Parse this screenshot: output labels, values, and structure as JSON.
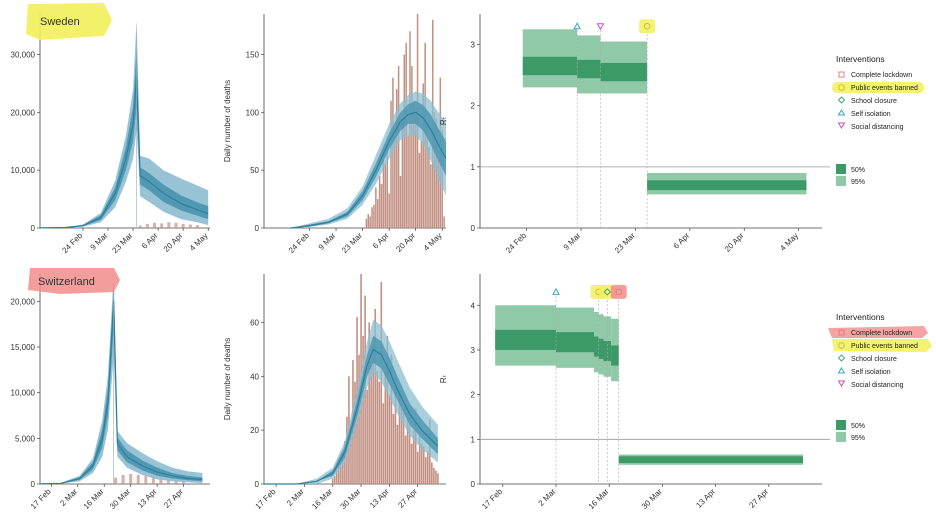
{
  "colors": {
    "blue_dark": "#2e7f9c",
    "blue_band_inner": "#4d97b1",
    "blue_band_outer": "#8cbdd0",
    "bar": "#c29184",
    "green_dark": "#3c9a68",
    "green_light": "#8fc9a8",
    "highlight_yellow": "#f2ef5a",
    "highlight_red": "#f28c8c",
    "marker_lockdown": "#e08080",
    "marker_events": "#c9c33a",
    "marker_school": "#4aaa77",
    "marker_isolation": "#3aa7c0",
    "marker_distancing": "#c055c0"
  },
  "panels": {
    "sweden": {
      "label": "Sweden"
    },
    "switzerland": {
      "label": "Switzerland"
    }
  },
  "legend": {
    "title": "Interventions",
    "items": [
      {
        "label": "Complete lockdown",
        "icon": "square-icon"
      },
      {
        "label": "Public events banned",
        "icon": "circle-icon"
      },
      {
        "label": "School closure",
        "icon": "diamond-icon"
      },
      {
        "label": "Self isolation",
        "icon": "triangle-up-icon"
      },
      {
        "label": "Social distancing",
        "icon": "triangle-down-icon"
      }
    ],
    "ci": [
      {
        "label": "50%"
      },
      {
        "label": "95%"
      }
    ]
  },
  "chart_data": [
    {
      "id": "sweden-infections",
      "type": "area",
      "title": "",
      "xlabel": "",
      "ylabel": "",
      "ylim": [
        0,
        37000
      ],
      "yticks": [
        0,
        10000,
        20000,
        30000
      ],
      "ytick_labels": [
        "0",
        "10,000",
        "20,000",
        "30,000"
      ],
      "xticks": [
        "24 Feb",
        "9 Mar",
        "23 Mar",
        "6 Apr",
        "20 Apr",
        "4 May"
      ],
      "x_days": [
        -24,
        71
      ],
      "xtick_days": [
        0,
        14,
        28,
        42,
        56,
        70
      ],
      "peak_day": 30,
      "series": {
        "x": [
          -24,
          -10,
          0,
          10,
          18,
          24,
          28,
          30,
          32,
          37,
          45,
          55,
          65,
          70
        ],
        "median": [
          20,
          80,
          400,
          1800,
          6000,
          12000,
          18000,
          26000,
          9000,
          8000,
          6000,
          4200,
          3000,
          2500
        ],
        "ci50_low": [
          15,
          60,
          300,
          1400,
          4800,
          10000,
          15000,
          21000,
          7500,
          6500,
          4500,
          3000,
          2000,
          1500
        ],
        "ci50_high": [
          25,
          100,
          500,
          2200,
          7000,
          14000,
          21000,
          31000,
          10500,
          9500,
          7500,
          5600,
          4300,
          3800
        ],
        "ci95_low": [
          10,
          40,
          200,
          1000,
          3600,
          8000,
          12000,
          17000,
          5500,
          4500,
          2800,
          1500,
          900,
          500
        ],
        "ci95_high": [
          30,
          120,
          600,
          2600,
          8200,
          16000,
          24000,
          36000,
          12500,
          12000,
          10000,
          8500,
          7200,
          6500
        ]
      },
      "bars": {
        "x": [
          32,
          36,
          40,
          44,
          48,
          52,
          56,
          60,
          64
        ],
        "values": [
          400,
          700,
          900,
          800,
          1000,
          900,
          700,
          600,
          500
        ]
      }
    },
    {
      "id": "sweden-deaths",
      "type": "bar",
      "title": "",
      "xlabel": "",
      "ylabel": "Daily number of deaths",
      "ylim": [
        0,
        185
      ],
      "yticks": [
        0,
        50,
        100,
        150
      ],
      "ytick_labels": [
        "0",
        "50",
        "100",
        "150"
      ],
      "xticks": [
        "24 Feb",
        "9 Mar",
        "23 Mar",
        "6 Apr",
        "20 Apr",
        "4 May"
      ],
      "x_days": [
        -24,
        72
      ],
      "xtick_days": [
        0,
        14,
        28,
        42,
        56,
        70
      ],
      "bars": {
        "x": [
          30,
          31,
          32,
          33,
          34,
          35,
          36,
          37,
          38,
          39,
          40,
          41,
          42,
          43,
          44,
          45,
          46,
          47,
          48,
          49,
          50,
          51,
          52,
          53,
          54,
          55,
          56,
          57,
          58,
          59,
          60,
          61,
          62,
          63,
          64,
          65,
          66,
          67,
          68,
          69,
          70,
          71
        ],
        "values": [
          8,
          12,
          10,
          18,
          20,
          35,
          25,
          45,
          38,
          60,
          55,
          70,
          30,
          110,
          130,
          85,
          120,
          140,
          45,
          95,
          150,
          160,
          80,
          170,
          140,
          110,
          100,
          185,
          65,
          75,
          125,
          160,
          90,
          70,
          55,
          180,
          100,
          95,
          60,
          130,
          85,
          10
        ]
      },
      "series": {
        "x": [
          -10,
          0,
          10,
          20,
          28,
          35,
          42,
          48,
          52,
          56,
          60,
          64,
          68,
          72
        ],
        "median": [
          0,
          2,
          5,
          12,
          28,
          50,
          75,
          92,
          98,
          100,
          95,
          85,
          72,
          60
        ],
        "ci50_low": [
          0,
          1,
          4,
          10,
          24,
          44,
          68,
          84,
          90,
          90,
          84,
          72,
          58,
          45
        ],
        "ci50_high": [
          0,
          3,
          6,
          14,
          32,
          56,
          82,
          100,
          107,
          110,
          106,
          98,
          86,
          75
        ],
        "ci95_low": [
          0,
          1,
          3,
          8,
          20,
          38,
          60,
          76,
          80,
          80,
          72,
          58,
          42,
          28
        ],
        "ci95_high": [
          0,
          4,
          8,
          17,
          36,
          63,
          90,
          108,
          115,
          118,
          116,
          110,
          100,
          92
        ]
      }
    },
    {
      "id": "sweden-rt",
      "type": "area",
      "title": "",
      "xlabel": "",
      "ylabel": "Rₜ",
      "ylim": [
        0,
        3.5
      ],
      "yticks": [
        0,
        1,
        2,
        3
      ],
      "ytick_labels": [
        "0",
        "1",
        "2",
        "3"
      ],
      "xticks": [
        "24 Feb",
        "9 Mar",
        "23 Mar",
        "6 Apr",
        "20 Apr",
        "4 May"
      ],
      "x_days": [
        -12,
        76
      ],
      "xtick_days": [
        0,
        14,
        28,
        42,
        56,
        70
      ],
      "reference_line": 1,
      "segments": [
        {
          "x0": -1,
          "x1": 13,
          "ci50": [
            2.5,
            2.8
          ],
          "ci95": [
            2.3,
            3.25
          ]
        },
        {
          "x0": 13,
          "x1": 19,
          "ci50": [
            2.45,
            2.75
          ],
          "ci95": [
            2.2,
            3.15
          ]
        },
        {
          "x0": 19,
          "x1": 31,
          "ci50": [
            2.4,
            2.7
          ],
          "ci95": [
            2.2,
            3.05
          ]
        },
        {
          "x0": 31,
          "x1": 72,
          "ci50": [
            0.62,
            0.78
          ],
          "ci95": [
            0.55,
            0.9
          ]
        }
      ],
      "interventions": [
        {
          "day": 13,
          "marker": "triangle-up",
          "y": 3.3
        },
        {
          "day": 19,
          "marker": "triangle-down",
          "y": 3.3
        },
        {
          "day": 31,
          "marker": "circle",
          "y": 3.3,
          "highlight": "yellow"
        }
      ]
    },
    {
      "id": "switzerland-infections",
      "type": "area",
      "title": "",
      "xlabel": "",
      "ylabel": "",
      "ylim": [
        0,
        23000
      ],
      "yticks": [
        0,
        5000,
        10000,
        15000,
        20000
      ],
      "ytick_labels": [
        "0",
        "5,000",
        "10,000",
        "15,000",
        "20,000"
      ],
      "xticks": [
        "17 Feb",
        "2 Mar",
        "16 Mar",
        "30 Mar",
        "13 Apr",
        "27 Apr"
      ],
      "x_days": [
        -6,
        84
      ],
      "xtick_days": [
        0,
        14,
        28,
        42,
        56,
        70
      ],
      "peak_day": 33,
      "series": {
        "x": [
          -6,
          5,
          15,
          22,
          27,
          30,
          33,
          35,
          40,
          48,
          56,
          64,
          72,
          80
        ],
        "median": [
          10,
          80,
          600,
          2000,
          5000,
          9000,
          20000,
          4400,
          3000,
          2000,
          1300,
          900,
          600,
          500
        ],
        "ci50_low": [
          8,
          60,
          450,
          1600,
          4000,
          7500,
          17000,
          3700,
          2400,
          1500,
          900,
          600,
          400,
          300
        ],
        "ci50_high": [
          12,
          100,
          750,
          2400,
          6000,
          10500,
          21500,
          5100,
          3700,
          2600,
          1800,
          1200,
          900,
          700
        ],
        "ci95_low": [
          5,
          40,
          300,
          1200,
          3000,
          6000,
          14000,
          3000,
          1800,
          1000,
          500,
          300,
          200,
          100
        ],
        "ci95_high": [
          15,
          120,
          900,
          2800,
          7000,
          12000,
          23000,
          5800,
          4500,
          3400,
          2500,
          1800,
          1400,
          1200
        ]
      },
      "bars": {
        "x": [
          34,
          38,
          42,
          46,
          50,
          54,
          58,
          62,
          66,
          70
        ],
        "values": [
          700,
          1000,
          1100,
          1000,
          900,
          800,
          600,
          500,
          400,
          300
        ]
      }
    },
    {
      "id": "switzerland-deaths",
      "type": "bar",
      "title": "",
      "xlabel": "",
      "ylabel": "Daily number of deaths",
      "ylim": [
        0,
        78
      ],
      "yticks": [
        0,
        20,
        40,
        60
      ],
      "ytick_labels": [
        "0",
        "20",
        "40",
        "60"
      ],
      "xticks": [
        "17 Feb",
        "2 Mar",
        "16 Mar",
        "30 Mar",
        "13 Apr",
        "27 Apr"
      ],
      "x_days": [
        -6,
        84
      ],
      "xtick_days": [
        0,
        14,
        28,
        42,
        56,
        70
      ],
      "bars": {
        "x": [
          28,
          29,
          30,
          31,
          32,
          33,
          34,
          35,
          36,
          37,
          38,
          39,
          40,
          41,
          42,
          43,
          44,
          45,
          46,
          47,
          48,
          49,
          50,
          51,
          52,
          53,
          54,
          55,
          56,
          57,
          58,
          59,
          60,
          61,
          62,
          63,
          64,
          65,
          66,
          67,
          68,
          69,
          70,
          71,
          72,
          73,
          74,
          75,
          76,
          77,
          78,
          79,
          80
        ],
        "values": [
          2,
          3,
          5,
          8,
          10,
          12,
          16,
          25,
          40,
          18,
          46,
          38,
          62,
          48,
          78,
          55,
          70,
          35,
          60,
          45,
          52,
          65,
          42,
          38,
          75,
          30,
          42,
          55,
          33,
          48,
          26,
          40,
          22,
          35,
          30,
          28,
          18,
          25,
          22,
          15,
          20,
          28,
          12,
          18,
          15,
          14,
          10,
          12,
          24,
          8,
          6,
          5,
          4
        ]
      },
      "series": {
        "x": [
          -6,
          10,
          20,
          28,
          34,
          40,
          45,
          48,
          52,
          56,
          60,
          66,
          72,
          80
        ],
        "median": [
          0,
          0,
          1,
          4,
          12,
          28,
          44,
          50,
          48,
          42,
          35,
          26,
          20,
          14
        ],
        "ci50_low": [
          0,
          0,
          1,
          3,
          10,
          25,
          40,
          45,
          43,
          37,
          31,
          22,
          17,
          11
        ],
        "ci50_high": [
          0,
          0,
          1,
          5,
          14,
          31,
          48,
          55,
          53,
          47,
          40,
          30,
          24,
          17
        ],
        "ci95_low": [
          0,
          0,
          0,
          2,
          8,
          22,
          36,
          41,
          38,
          32,
          26,
          18,
          13,
          8
        ],
        "ci95_high": [
          0,
          0,
          2,
          6,
          16,
          35,
          53,
          61,
          59,
          53,
          46,
          36,
          29,
          22
        ]
      }
    },
    {
      "id": "switzerland-rt",
      "type": "area",
      "title": "",
      "xlabel": "",
      "ylabel": "Rₜ",
      "ylim": [
        0,
        4.7
      ],
      "yticks": [
        0,
        1,
        2,
        3,
        4
      ],
      "ytick_labels": [
        "0",
        "1",
        "2",
        "3",
        "4"
      ],
      "xticks": [
        "17 Feb",
        "2 Mar",
        "16 Mar",
        "30 Mar",
        "13 Apr",
        "27 Apr"
      ],
      "x_days": [
        -6,
        84
      ],
      "xtick_days": [
        0,
        14,
        28,
        42,
        56,
        70
      ],
      "reference_line": 1,
      "segments": [
        {
          "x0": -2,
          "x1": 14,
          "ci50": [
            3.0,
            3.45
          ],
          "ci95": [
            2.65,
            4.0
          ]
        },
        {
          "x0": 14,
          "x1": 24,
          "ci50": [
            2.95,
            3.4
          ],
          "ci95": [
            2.6,
            3.95
          ]
        },
        {
          "x0": 24,
          "x1": 25.2,
          "ci50": [
            2.85,
            3.3
          ],
          "ci95": [
            2.5,
            3.85
          ]
        },
        {
          "x0": 25.2,
          "x1": 26.5,
          "ci50": [
            2.8,
            3.25
          ],
          "ci95": [
            2.45,
            3.8
          ]
        },
        {
          "x0": 26.5,
          "x1": 28.5,
          "ci50": [
            2.75,
            3.2
          ],
          "ci95": [
            2.4,
            3.75
          ]
        },
        {
          "x0": 28.5,
          "x1": 30.5,
          "ci50": [
            2.65,
            3.1
          ],
          "ci95": [
            2.3,
            3.7
          ]
        },
        {
          "x0": 30.5,
          "x1": 79,
          "ci50": [
            0.47,
            0.62
          ],
          "ci95": [
            0.43,
            0.66
          ]
        }
      ],
      "interventions": [
        {
          "day": 14,
          "marker": "triangle-up",
          "y": 4.3
        },
        {
          "day": 25.2,
          "marker": "circle",
          "y": 4.3,
          "highlight": "yellow"
        },
        {
          "day": 27.5,
          "marker": "diamond",
          "y": 4.3,
          "highlight": "yellow"
        },
        {
          "day": 30.5,
          "marker": "square",
          "y": 4.3,
          "highlight": "red"
        }
      ]
    }
  ]
}
